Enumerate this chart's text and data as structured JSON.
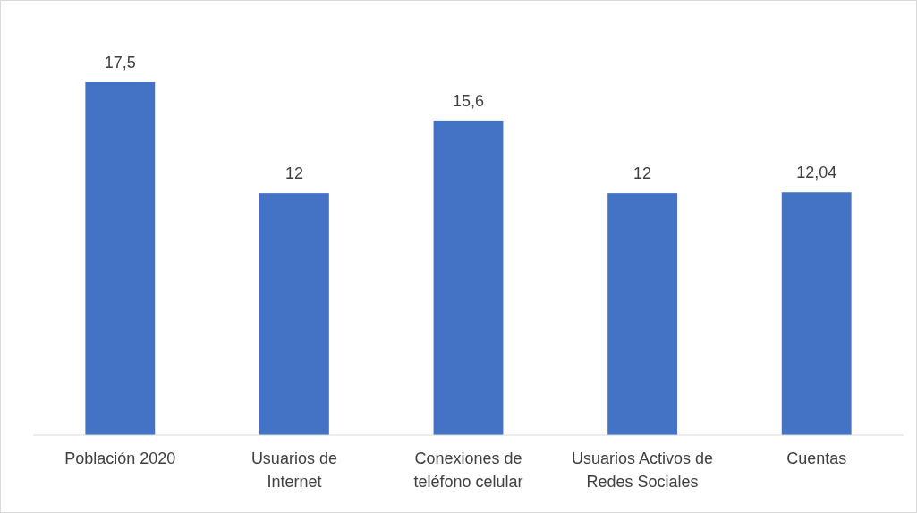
{
  "chart_data": {
    "type": "bar",
    "categories": [
      "Población 2020",
      "Usuarios de Internet",
      "Conexiones de teléfono celular",
      "Usuarios Activos de Redes Sociales",
      "Cuentas"
    ],
    "values": [
      17.5,
      12,
      15.6,
      12,
      12.04
    ],
    "value_labels": [
      "17,5",
      "12",
      "15,6",
      "12",
      "12,04"
    ],
    "color": "#4472c4"
  }
}
